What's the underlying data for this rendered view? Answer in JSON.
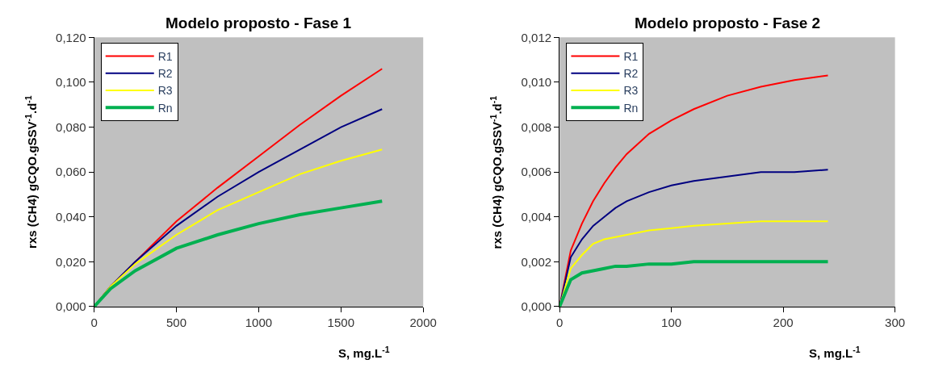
{
  "chart_data": [
    {
      "type": "line",
      "title": "Modelo proposto - Fase 1",
      "xlabel": "S, mg.L$^{-1}$",
      "ylabel": "rxs (CH4) gCQO.gSSV$^{-1}$.d$^{-1}$",
      "x": [
        0,
        100,
        250,
        500,
        750,
        1000,
        1250,
        1500,
        1750
      ],
      "series": [
        {
          "name": "R1",
          "color": "#ff0000",
          "values": [
            0,
            0.009,
            0.02,
            0.038,
            0.053,
            0.067,
            0.081,
            0.094,
            0.106
          ]
        },
        {
          "name": "R2",
          "color": "#000080",
          "values": [
            0,
            0.009,
            0.02,
            0.036,
            0.049,
            0.06,
            0.07,
            0.08,
            0.088
          ]
        },
        {
          "name": "R3",
          "color": "#ffff00",
          "values": [
            0,
            0.009,
            0.019,
            0.032,
            0.043,
            0.051,
            0.059,
            0.065,
            0.07
          ]
        },
        {
          "name": "Rn",
          "color": "#00b050",
          "values": [
            0,
            0.008,
            0.016,
            0.026,
            0.032,
            0.037,
            0.041,
            0.044,
            0.047
          ]
        }
      ],
      "xlim": [
        0,
        2000
      ],
      "xticks": [
        0,
        500,
        1000,
        1500,
        2000
      ],
      "ylim": [
        0,
        0.12
      ],
      "yticks": [
        {
          "value": 0,
          "label": "0,000"
        },
        {
          "value": 0.02,
          "label": "0,020"
        },
        {
          "value": 0.04,
          "label": "0,040"
        },
        {
          "value": 0.06,
          "label": "0,060"
        },
        {
          "value": 0.08,
          "label": "0,080"
        },
        {
          "value": 0.1,
          "label": "0,100"
        },
        {
          "value": 0.12,
          "label": "0,120"
        }
      ],
      "grid": false,
      "legend": "top left",
      "marker": "none",
      "line_style": "solid"
    },
    {
      "type": "line",
      "title": "Modelo proposto - Fase 2",
      "xlabel": "S, mg.L$^{-1}$",
      "ylabel": "rxs (CH4) gCQO.gSSV$^{-1}$.d$^{-1}$",
      "x": [
        0,
        10,
        20,
        30,
        40,
        50,
        60,
        80,
        100,
        120,
        150,
        180,
        210,
        240
      ],
      "series": [
        {
          "name": "R1",
          "color": "#ff0000",
          "values": [
            0,
            0.0025,
            0.0037,
            0.0047,
            0.0055,
            0.0062,
            0.0068,
            0.0077,
            0.0083,
            0.0088,
            0.0094,
            0.0098,
            0.0101,
            0.0103
          ]
        },
        {
          "name": "R2",
          "color": "#000080",
          "values": [
            0,
            0.0022,
            0.003,
            0.0036,
            0.004,
            0.0044,
            0.0047,
            0.0051,
            0.0054,
            0.0056,
            0.0058,
            0.006,
            0.006,
            0.0061
          ]
        },
        {
          "name": "R3",
          "color": "#ffff00",
          "values": [
            0,
            0.0017,
            0.0023,
            0.0028,
            0.003,
            0.0031,
            0.0032,
            0.0034,
            0.0035,
            0.0036,
            0.0037,
            0.0038,
            0.0038,
            0.0038
          ]
        },
        {
          "name": "Rn",
          "color": "#00b050",
          "values": [
            0,
            0.0012,
            0.0015,
            0.0016,
            0.0017,
            0.0018,
            0.0018,
            0.0019,
            0.0019,
            0.002,
            0.002,
            0.002,
            0.002,
            0.002
          ]
        }
      ],
      "xlim": [
        0,
        300
      ],
      "xticks": [
        0,
        100,
        200,
        300
      ],
      "ylim": [
        0,
        0.012
      ],
      "yticks": [
        {
          "value": 0,
          "label": "0,000"
        },
        {
          "value": 0.002,
          "label": "0,002"
        },
        {
          "value": 0.004,
          "label": "0,004"
        },
        {
          "value": 0.006,
          "label": "0,006"
        },
        {
          "value": 0.008,
          "label": "0,008"
        },
        {
          "value": 0.01,
          "label": "0,010"
        },
        {
          "value": 0.012,
          "label": "0,012"
        }
      ],
      "grid": false,
      "legend": "top left",
      "marker": "none",
      "line_style": "solid"
    }
  ]
}
